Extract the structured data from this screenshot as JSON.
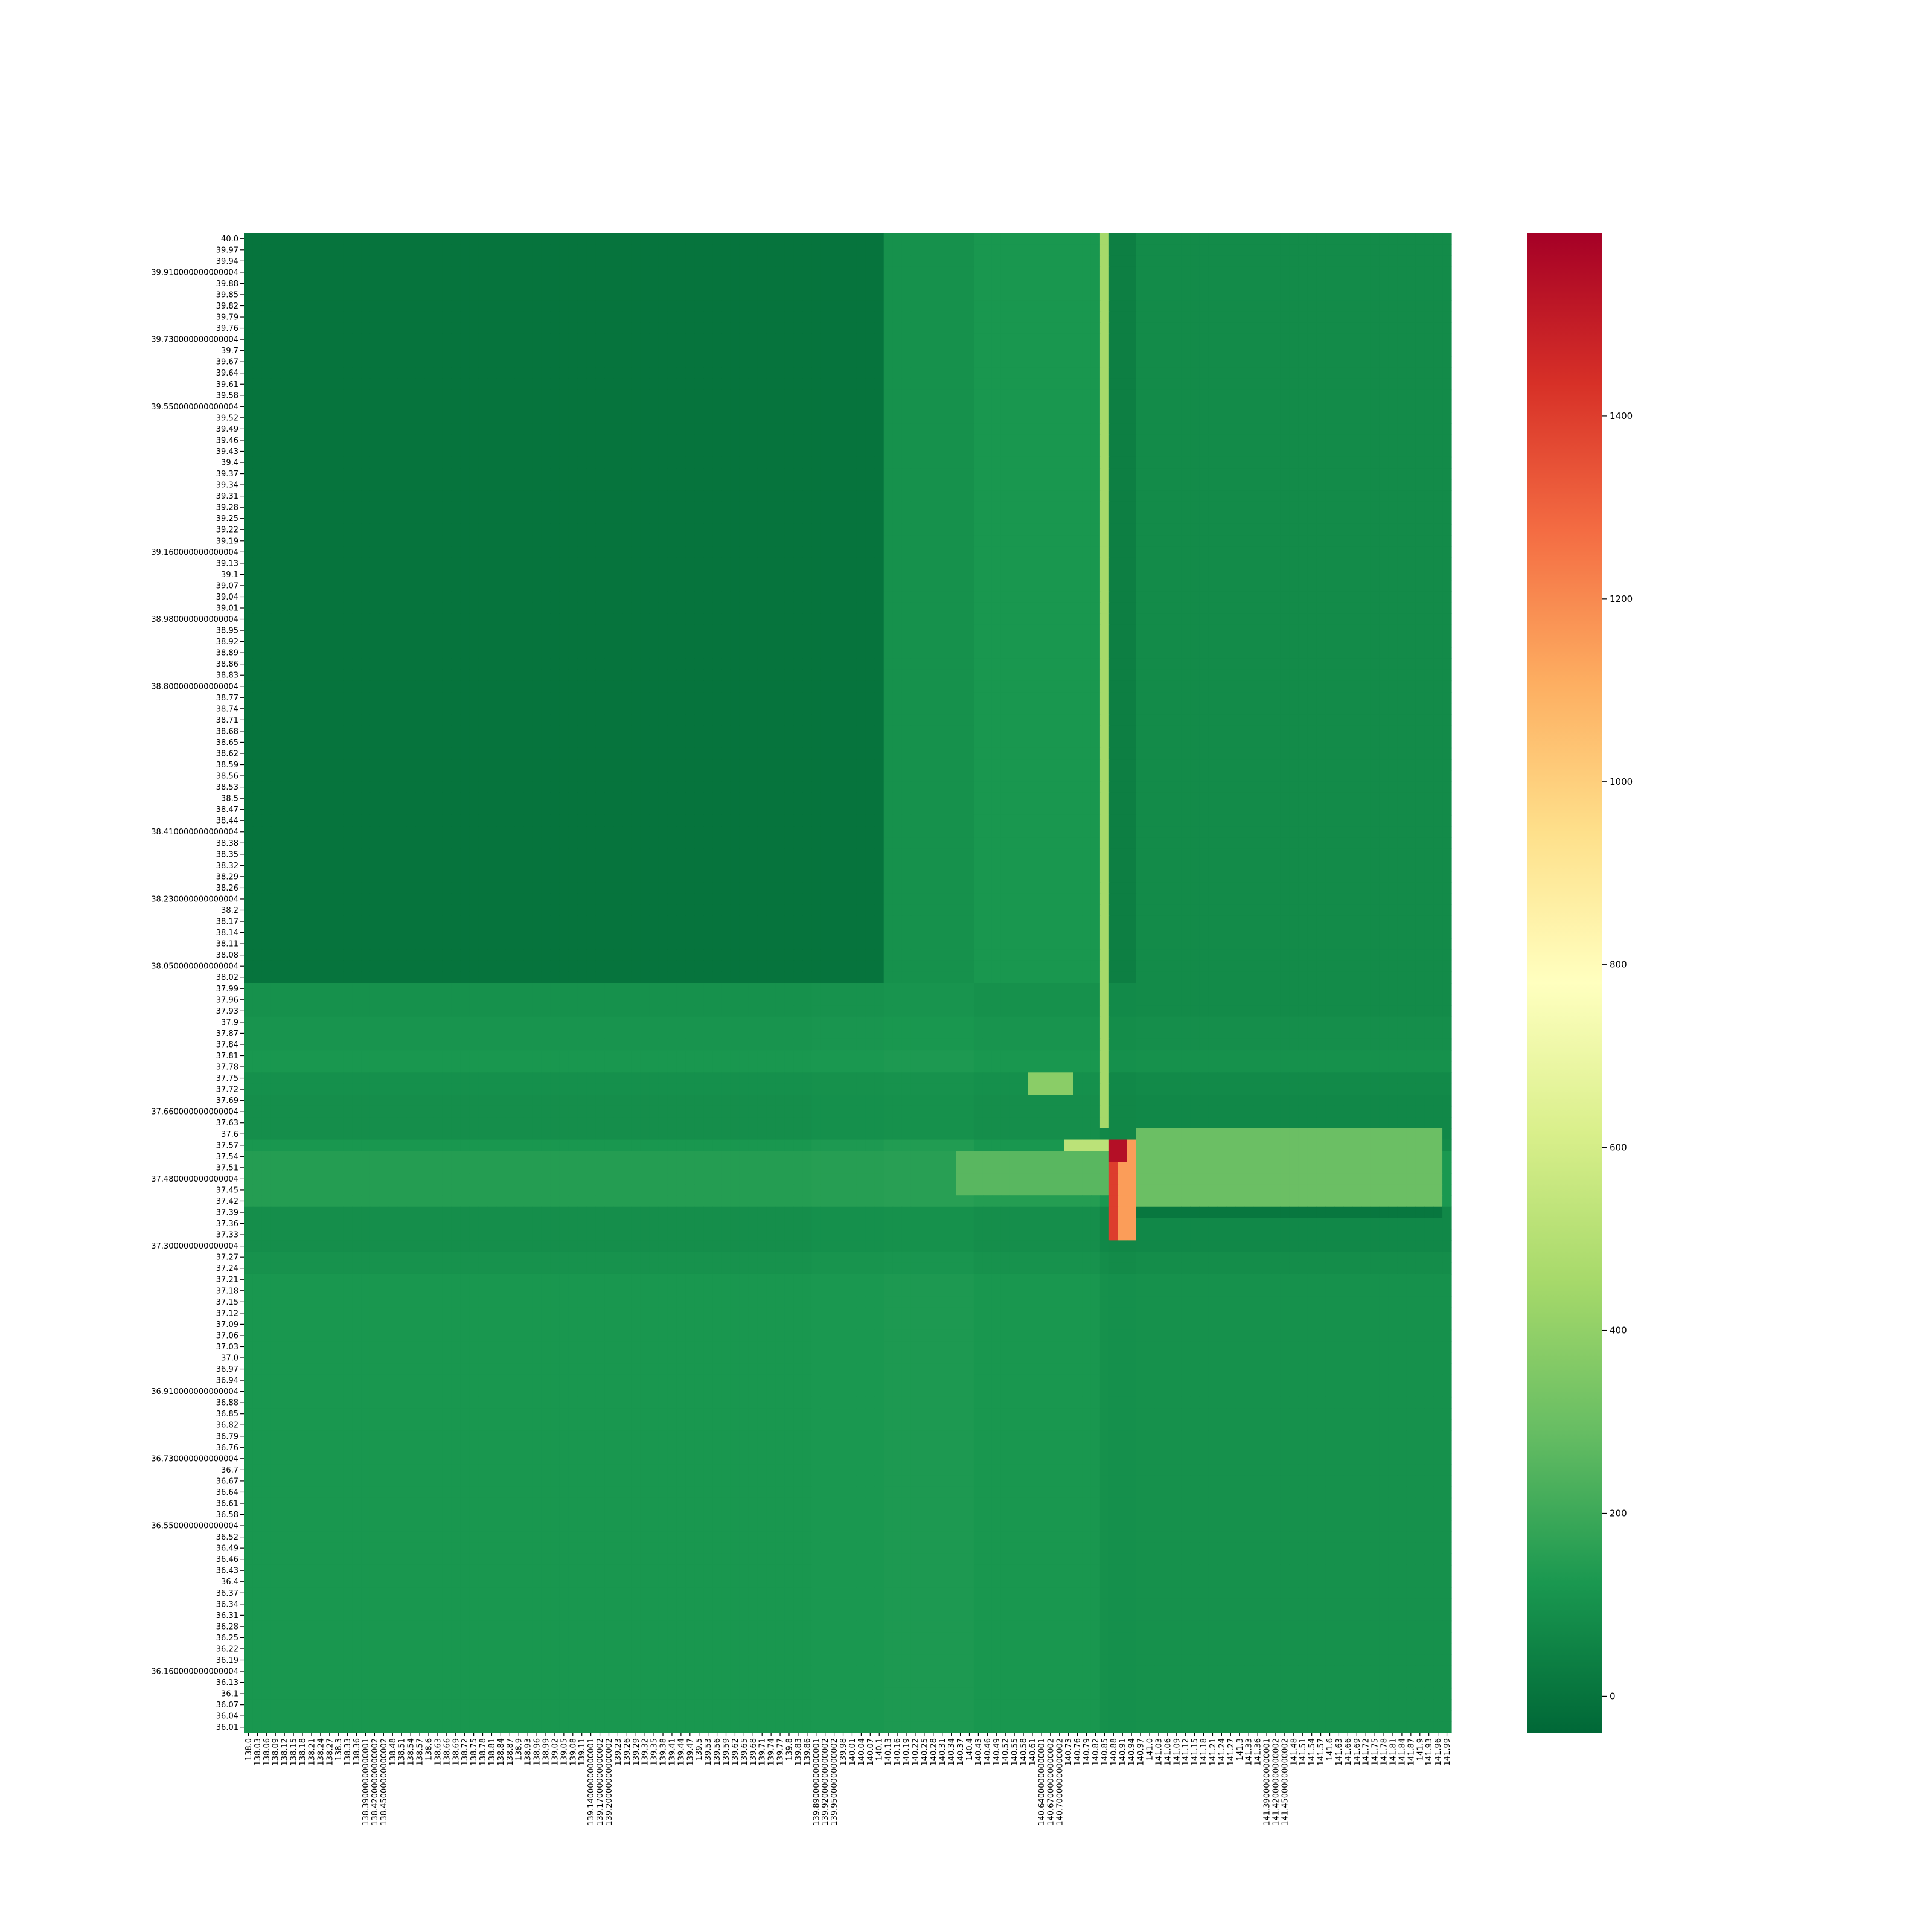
{
  "chart_data": {
    "type": "heatmap",
    "title": "",
    "xlabel": "",
    "ylabel": "",
    "colormap": "RdYlGn_r",
    "colormap_stops": [
      "#006837",
      "#1a9850",
      "#66bd63",
      "#a6d96a",
      "#d9ef8b",
      "#ffffbf",
      "#fee08b",
      "#fdae61",
      "#f46d43",
      "#d73027",
      "#a50026"
    ],
    "value_range": [
      -40,
      1600
    ],
    "colorbar_ticks": [
      0,
      200,
      400,
      600,
      800,
      1000,
      1200,
      1400
    ],
    "colorbar_tick_labels": [
      "0",
      "200",
      "400",
      "600",
      "800",
      "1000",
      "1200",
      "1400"
    ],
    "x_range": [
      138.0,
      141.99
    ],
    "y_range": [
      36.01,
      40.0
    ],
    "x_tick_labels": [
      "138.0",
      "138.03",
      "138.06",
      "138.09",
      "138.12",
      "138.15",
      "138.18",
      "138.21",
      "138.24",
      "138.27",
      "138.3",
      "138.33",
      "138.36",
      "138.39000000000001",
      "138.42000000000002",
      "138.45000000000002",
      "138.48",
      "138.51",
      "138.54",
      "138.57",
      "138.6",
      "138.63",
      "138.66",
      "138.69",
      "138.72",
      "138.75",
      "138.78",
      "138.81",
      "138.84",
      "138.87",
      "138.9",
      "138.93",
      "138.96",
      "138.99",
      "139.02",
      "139.05",
      "139.08",
      "139.11",
      "139.14000000000001",
      "139.17000000000002",
      "139.20000000000002",
      "139.23",
      "139.26",
      "139.29",
      "139.32",
      "139.35",
      "139.38",
      "139.41",
      "139.44",
      "139.47",
      "139.5",
      "139.53",
      "139.56",
      "139.59",
      "139.62",
      "139.65",
      "139.68",
      "139.71",
      "139.74",
      "139.77",
      "139.8",
      "139.83",
      "139.86",
      "139.89000000000001",
      "139.92000000000002",
      "139.95000000000002",
      "139.98",
      "140.01",
      "140.04",
      "140.07",
      "140.1",
      "140.13",
      "140.16",
      "140.19",
      "140.22",
      "140.25",
      "140.28",
      "140.31",
      "140.34",
      "140.37",
      "140.4",
      "140.43",
      "140.46",
      "140.49",
      "140.52",
      "140.55",
      "140.58",
      "140.61",
      "140.64000000000001",
      "140.67000000000002",
      "140.70000000000002",
      "140.73",
      "140.76",
      "140.79",
      "140.82",
      "140.85",
      "140.88",
      "140.91",
      "140.94",
      "140.97",
      "141.0",
      "141.03",
      "141.06",
      "141.09",
      "141.12",
      "141.15",
      "141.18",
      "141.21",
      "141.24",
      "141.27",
      "141.3",
      "141.33",
      "141.36",
      "141.39000000000001",
      "141.42000000000002",
      "141.45000000000002",
      "141.48",
      "141.51",
      "141.54",
      "141.57",
      "141.6",
      "141.63",
      "141.66",
      "141.69",
      "141.72",
      "141.75",
      "141.78",
      "141.81",
      "141.84",
      "141.87",
      "141.9",
      "141.93",
      "141.96",
      "141.99"
    ],
    "y_tick_labels": [
      "40.0",
      "39.97",
      "39.94",
      "39.910000000000004",
      "39.88",
      "39.85",
      "39.82",
      "39.79",
      "39.76",
      "39.730000000000004",
      "39.7",
      "39.67",
      "39.64",
      "39.61",
      "39.58",
      "39.550000000000004",
      "39.52",
      "39.49",
      "39.46",
      "39.43",
      "39.4",
      "39.37",
      "39.34",
      "39.31",
      "39.28",
      "39.25",
      "39.22",
      "39.19",
      "39.160000000000004",
      "39.13",
      "39.1",
      "39.07",
      "39.04",
      "39.01",
      "38.980000000000004",
      "38.95",
      "38.92",
      "38.89",
      "38.86",
      "38.83",
      "38.800000000000004",
      "38.77",
      "38.74",
      "38.71",
      "38.68",
      "38.65",
      "38.62",
      "38.59",
      "38.56",
      "38.53",
      "38.5",
      "38.47",
      "38.44",
      "38.410000000000004",
      "38.38",
      "38.35",
      "38.32",
      "38.29",
      "38.26",
      "38.230000000000004",
      "38.2",
      "38.17",
      "38.14",
      "38.11",
      "38.08",
      "38.050000000000004",
      "38.02",
      "37.99",
      "37.96",
      "37.93",
      "37.9",
      "37.87",
      "37.84",
      "37.81",
      "37.78",
      "37.75",
      "37.72",
      "37.69",
      "37.660000000000004",
      "37.63",
      "37.6",
      "37.57",
      "37.54",
      "37.51",
      "37.480000000000004",
      "37.45",
      "37.42",
      "37.39",
      "37.36",
      "37.33",
      "37.300000000000004",
      "37.27",
      "37.24",
      "37.21",
      "37.18",
      "37.15",
      "37.12",
      "37.09",
      "37.06",
      "37.03",
      "37.0",
      "36.97",
      "36.94",
      "36.910000000000004",
      "36.88",
      "36.85",
      "36.82",
      "36.79",
      "36.76",
      "36.730000000000004",
      "36.7",
      "36.67",
      "36.64",
      "36.61",
      "36.58",
      "36.550000000000004",
      "36.52",
      "36.49",
      "36.46",
      "36.43",
      "36.4",
      "36.37",
      "36.34",
      "36.31",
      "36.28",
      "36.25",
      "36.22",
      "36.19",
      "36.160000000000004",
      "36.13",
      "36.1",
      "36.07",
      "36.04",
      "36.01"
    ],
    "column_profile": [
      {
        "x0": 138.0,
        "x1": 139.89,
        "north": 0,
        "south": 120
      },
      {
        "x0": 139.89,
        "x1": 140.13,
        "north": 0,
        "south": 130
      },
      {
        "x0": 140.13,
        "x1": 140.43,
        "north": 100,
        "south": 140
      },
      {
        "x0": 140.43,
        "x1": 140.85,
        "north": 120,
        "south": 120
      },
      {
        "x0": 140.85,
        "x1": 140.88,
        "north": 450,
        "south": 80
      },
      {
        "x0": 140.88,
        "x1": 140.97,
        "north": 40,
        "south": 70
      },
      {
        "x0": 140.97,
        "x1": 141.99,
        "north": 80,
        "south": 80
      }
    ],
    "row_profile": [
      {
        "y0": 38.0,
        "y1": 37.93,
        "value": 80
      },
      {
        "y0": 37.93,
        "y1": 37.84,
        "value": 100
      },
      {
        "y0": 37.84,
        "y1": 37.77,
        "value": 120
      },
      {
        "y0": 37.77,
        "y1": 37.72,
        "value": 70
      },
      {
        "y0": 37.72,
        "y1": 37.6,
        "value": 60
      },
      {
        "y0": 37.56,
        "y1": 37.4,
        "value": 170
      },
      {
        "y0": 37.4,
        "y1": 37.29,
        "value": 60
      },
      {
        "y0": 37.29,
        "y1": 37.22,
        "value": 90
      },
      {
        "y0": 37.22,
        "y1": 36.01,
        "value": 120
      }
    ],
    "hotspots": [
      {
        "x0": 140.59,
        "x1": 140.76,
        "y0": 37.76,
        "y1": 37.72,
        "value": 380
      },
      {
        "x0": 140.97,
        "x1": 141.99,
        "y0": 37.61,
        "y1": 37.4,
        "value": 300
      },
      {
        "x0": 140.97,
        "x1": 141.99,
        "y0": 37.39,
        "y1": 37.37,
        "value": 10
      },
      {
        "x0": 140.37,
        "x1": 140.97,
        "y0": 37.56,
        "y1": 37.45,
        "value": 260
      },
      {
        "x0": 140.73,
        "x1": 140.88,
        "y0": 37.57,
        "y1": 37.55,
        "value": 520
      },
      {
        "x0": 140.88,
        "x1": 140.97,
        "y0": 37.58,
        "y1": 37.33,
        "value": 1150
      },
      {
        "x0": 140.88,
        "x1": 140.91,
        "y0": 37.57,
        "y1": 37.33,
        "value": 1400
      },
      {
        "x0": 140.88,
        "x1": 140.94,
        "y0": 37.57,
        "y1": 37.54,
        "value": 1550
      }
    ]
  }
}
